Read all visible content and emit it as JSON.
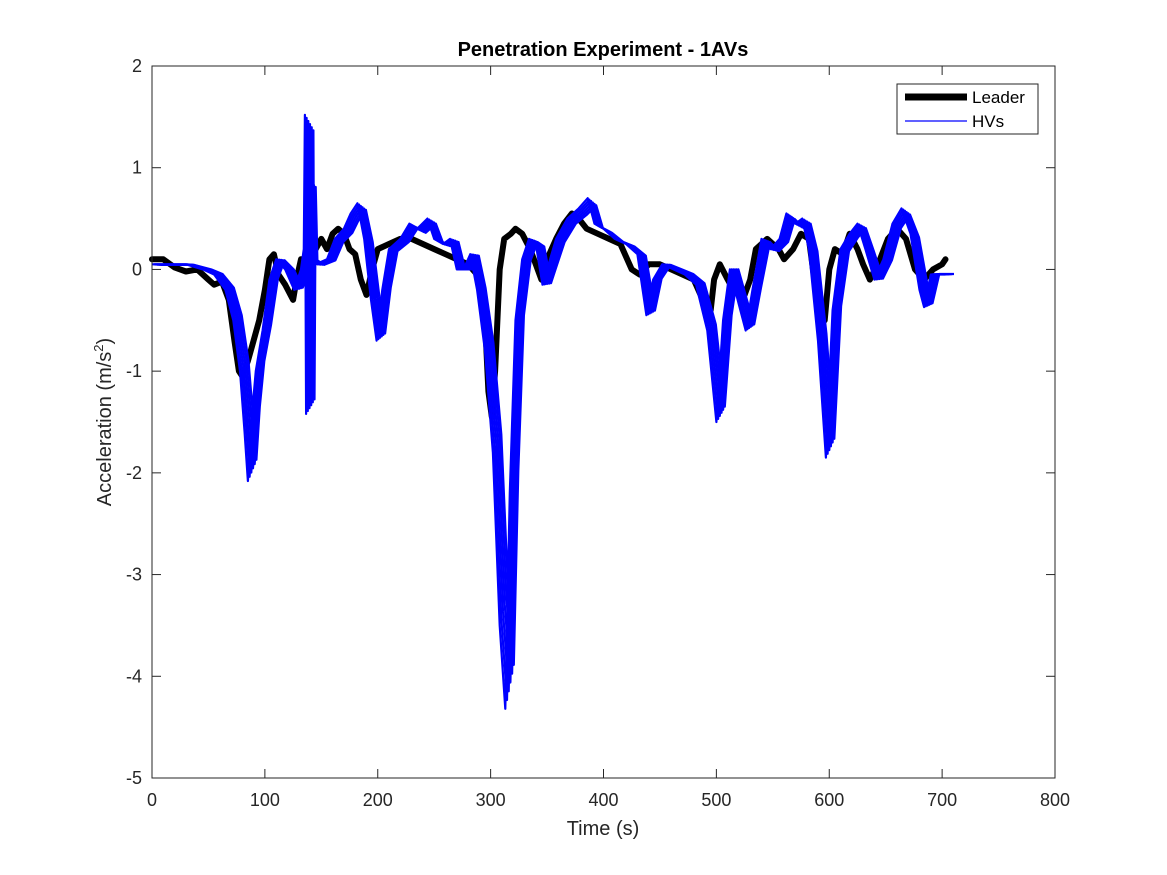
{
  "chart_data": {
    "type": "line",
    "title": "Penetration Experiment - 1AVs",
    "xlabel": "Time (s)",
    "ylabel_main": "Acceleration (m/s",
    "ylabel_sup": "2",
    "ylabel_tail": ")",
    "xlim": [
      0,
      800
    ],
    "ylim": [
      -5,
      2
    ],
    "xticks": [
      0,
      100,
      200,
      300,
      400,
      500,
      600,
      700,
      800
    ],
    "yticks": [
      2,
      1,
      0,
      -1,
      -2,
      -3,
      -4,
      -5
    ],
    "grid": false,
    "legend_position": "top-right",
    "series": [
      {
        "name": "Leader",
        "color": "#000000",
        "points": [
          [
            0,
            0.1
          ],
          [
            10,
            0.1
          ],
          [
            20,
            0.02
          ],
          [
            30,
            -0.02
          ],
          [
            40,
            0.0
          ],
          [
            50,
            -0.1
          ],
          [
            55,
            -0.15
          ],
          [
            62,
            -0.12
          ],
          [
            68,
            -0.3
          ],
          [
            73,
            -0.7
          ],
          [
            77,
            -1.0
          ],
          [
            80,
            -1.05
          ],
          [
            85,
            -0.9
          ],
          [
            90,
            -0.7
          ],
          [
            95,
            -0.5
          ],
          [
            100,
            -0.2
          ],
          [
            104,
            0.1
          ],
          [
            108,
            0.15
          ],
          [
            112,
            -0.05
          ],
          [
            118,
            -0.15
          ],
          [
            125,
            -0.3
          ],
          [
            128,
            -0.1
          ],
          [
            132,
            0.1
          ],
          [
            140,
            0.1
          ],
          [
            150,
            0.3
          ],
          [
            155,
            0.2
          ],
          [
            160,
            0.35
          ],
          [
            165,
            0.4
          ],
          [
            170,
            0.35
          ],
          [
            175,
            0.2
          ],
          [
            180,
            0.15
          ],
          [
            185,
            -0.1
          ],
          [
            190,
            -0.25
          ],
          [
            195,
            0.0
          ],
          [
            200,
            0.2
          ],
          [
            210,
            0.25
          ],
          [
            220,
            0.3
          ],
          [
            230,
            0.3
          ],
          [
            240,
            0.25
          ],
          [
            250,
            0.2
          ],
          [
            260,
            0.15
          ],
          [
            270,
            0.1
          ],
          [
            280,
            0.05
          ],
          [
            288,
            -0.05
          ],
          [
            295,
            -0.5
          ],
          [
            298,
            -1.2
          ],
          [
            301,
            -1.45
          ],
          [
            304,
            -1.0
          ],
          [
            308,
            0.0
          ],
          [
            312,
            0.3
          ],
          [
            318,
            0.35
          ],
          [
            322,
            0.4
          ],
          [
            328,
            0.35
          ],
          [
            335,
            0.2
          ],
          [
            340,
            0.05
          ],
          [
            345,
            -0.1
          ],
          [
            350,
            0.1
          ],
          [
            358,
            0.3
          ],
          [
            365,
            0.45
          ],
          [
            372,
            0.55
          ],
          [
            378,
            0.5
          ],
          [
            385,
            0.4
          ],
          [
            395,
            0.35
          ],
          [
            405,
            0.3
          ],
          [
            415,
            0.25
          ],
          [
            425,
            0.0
          ],
          [
            432,
            -0.05
          ],
          [
            440,
            0.05
          ],
          [
            450,
            0.05
          ],
          [
            460,
            0.0
          ],
          [
            470,
            -0.05
          ],
          [
            480,
            -0.1
          ],
          [
            488,
            -0.3
          ],
          [
            492,
            -0.5
          ],
          [
            495,
            -0.4
          ],
          [
            498,
            -0.1
          ],
          [
            503,
            0.05
          ],
          [
            510,
            -0.1
          ],
          [
            515,
            -0.2
          ],
          [
            520,
            -0.15
          ],
          [
            525,
            -0.25
          ],
          [
            530,
            -0.1
          ],
          [
            535,
            0.2
          ],
          [
            545,
            0.3
          ],
          [
            555,
            0.2
          ],
          [
            560,
            0.1
          ],
          [
            568,
            0.2
          ],
          [
            575,
            0.35
          ],
          [
            582,
            0.3
          ],
          [
            588,
            -0.2
          ],
          [
            592,
            -0.55
          ],
          [
            596,
            -0.5
          ],
          [
            600,
            0.0
          ],
          [
            605,
            0.2
          ],
          [
            612,
            0.15
          ],
          [
            618,
            0.35
          ],
          [
            625,
            0.2
          ],
          [
            630,
            0.05
          ],
          [
            636,
            -0.1
          ],
          [
            645,
            0.1
          ],
          [
            652,
            0.3
          ],
          [
            660,
            0.4
          ],
          [
            668,
            0.3
          ],
          [
            676,
            0.0
          ],
          [
            684,
            -0.1
          ],
          [
            692,
            0.0
          ],
          [
            700,
            0.05
          ],
          [
            703,
            0.1
          ]
        ]
      },
      {
        "name": "HVs",
        "color": "#0000ff",
        "points": [
          [
            0,
            0.05
          ],
          [
            15,
            0.05
          ],
          [
            30,
            0.05
          ],
          [
            45,
            0.0
          ],
          [
            55,
            -0.05
          ],
          [
            65,
            -0.2
          ],
          [
            72,
            -0.5
          ],
          [
            78,
            -1.0
          ],
          [
            82,
            -1.6
          ],
          [
            85,
            -2.08
          ],
          [
            88,
            -1.5
          ],
          [
            92,
            -1.0
          ],
          [
            98,
            -0.6
          ],
          [
            104,
            -0.1
          ],
          [
            110,
            0.1
          ],
          [
            118,
            0.0
          ],
          [
            126,
            -0.2
          ],
          [
            132,
            0.0
          ],
          [
            134.5,
            0.2
          ],
          [
            135.5,
            1.52
          ],
          [
            136.5,
            -1.42
          ],
          [
            137.5,
            0.9
          ],
          [
            139,
            0.1
          ],
          [
            145,
            0.05
          ],
          [
            155,
            0.1
          ],
          [
            162,
            0.3
          ],
          [
            170,
            0.4
          ],
          [
            176,
            0.55
          ],
          [
            182,
            0.65
          ],
          [
            188,
            0.3
          ],
          [
            194,
            -0.3
          ],
          [
            199,
            -0.7
          ],
          [
            204,
            -0.2
          ],
          [
            210,
            0.2
          ],
          [
            220,
            0.3
          ],
          [
            228,
            0.45
          ],
          [
            235,
            0.4
          ],
          [
            244,
            0.5
          ],
          [
            250,
            0.3
          ],
          [
            258,
            0.25
          ],
          [
            264,
            0.3
          ],
          [
            270,
            0.0
          ],
          [
            276,
            0.0
          ],
          [
            282,
            0.15
          ],
          [
            288,
            -0.2
          ],
          [
            295,
            -0.8
          ],
          [
            302,
            -1.8
          ],
          [
            308,
            -3.5
          ],
          [
            313,
            -4.32
          ],
          [
            317,
            -2.2
          ],
          [
            322,
            -0.5
          ],
          [
            328,
            0.1
          ],
          [
            334,
            0.3
          ],
          [
            340,
            0.25
          ],
          [
            346,
            -0.15
          ],
          [
            350,
            0.0
          ],
          [
            358,
            0.3
          ],
          [
            368,
            0.5
          ],
          [
            378,
            0.6
          ],
          [
            386,
            0.7
          ],
          [
            392,
            0.45
          ],
          [
            400,
            0.4
          ],
          [
            410,
            0.3
          ],
          [
            420,
            0.25
          ],
          [
            430,
            0.15
          ],
          [
            438,
            -0.45
          ],
          [
            444,
            -0.1
          ],
          [
            452,
            0.05
          ],
          [
            462,
            0.0
          ],
          [
            472,
            -0.05
          ],
          [
            482,
            -0.15
          ],
          [
            492,
            -0.6
          ],
          [
            500,
            -1.5
          ],
          [
            506,
            -0.5
          ],
          [
            512,
            0.0
          ],
          [
            520,
            -0.35
          ],
          [
            526,
            -0.6
          ],
          [
            532,
            -0.2
          ],
          [
            540,
            0.3
          ],
          [
            548,
            0.2
          ],
          [
            556,
            0.3
          ],
          [
            562,
            0.55
          ],
          [
            570,
            0.45
          ],
          [
            576,
            0.5
          ],
          [
            582,
            0.2
          ],
          [
            590,
            -0.7
          ],
          [
            597,
            -1.85
          ],
          [
            603,
            -0.4
          ],
          [
            610,
            0.2
          ],
          [
            618,
            0.35
          ],
          [
            625,
            0.45
          ],
          [
            632,
            0.2
          ],
          [
            640,
            -0.1
          ],
          [
            648,
            0.1
          ],
          [
            656,
            0.45
          ],
          [
            664,
            0.6
          ],
          [
            672,
            0.35
          ],
          [
            680,
            -0.2
          ],
          [
            684,
            -0.37
          ],
          [
            690,
            -0.05
          ],
          [
            698,
            -0.05
          ],
          [
            703,
            -0.05
          ]
        ]
      }
    ]
  },
  "legend": {
    "items": [
      {
        "label": "Leader",
        "color": "#000000",
        "width": 7
      },
      {
        "label": "HVs",
        "color": "#0000ff",
        "width": 1.2
      }
    ]
  }
}
